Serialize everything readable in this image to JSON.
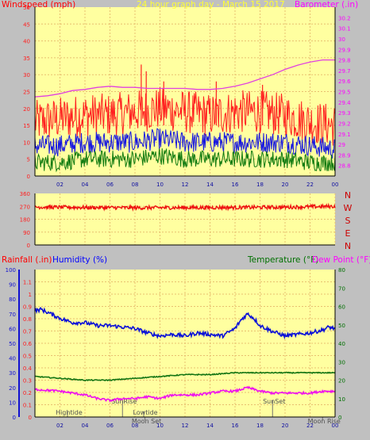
{
  "top_chart": {
    "title": "24 hour graph day - March 15 2017",
    "left_label": "Windspeed (mph)",
    "right_label": "Barometer (.in)"
  },
  "mid_chart": {
    "directions": [
      "N",
      "W",
      "S",
      "E",
      "N"
    ]
  },
  "bottom_chart": {
    "rain_label": "Rainfall (.in)",
    "hum_label": "Humidity (%)",
    "temp_label": "Temperature (°F)",
    "dew_label": "Dew Point (°F)",
    "events": [
      {
        "label": "Hightide",
        "t": 2.6,
        "row": 1
      },
      {
        "label": "SunRise",
        "t": 7.0,
        "row": 0
      },
      {
        "label": "Lowtide",
        "t": 8.7,
        "row": 1
      },
      {
        "label": "Moon Set",
        "t": 8.8,
        "row": 2
      },
      {
        "label": "SunSet",
        "t": 19.0,
        "row": 0
      },
      {
        "label": "Moon Rise",
        "t": 23.0,
        "row": 2
      }
    ]
  },
  "colors": {
    "background": "#c0c0c0",
    "plot": "#ffffa0",
    "grid": "#e8c070",
    "wind_gust": "#ff2020",
    "wind_avg": "#1515e0",
    "wind_min": "#107a10",
    "barometer": "#e040e0",
    "direction": "#ee1010",
    "humidity": "#0a10d8",
    "temperature": "#147514",
    "dewpoint": "#ee10ee",
    "rain_axis": "#1010d0",
    "dir_label": "#cc0000"
  },
  "chart_data": [
    {
      "type": "line",
      "title": "24 hour graph day - March 15 2017",
      "x_ticks": [
        "02",
        "04",
        "06",
        "08",
        "10",
        "12",
        "14",
        "16",
        "18",
        "20",
        "22",
        "00"
      ],
      "ylabel": "Windspeed (mph)",
      "ylim": [
        0,
        50
      ],
      "y_ticks": [
        0,
        5,
        10,
        15,
        20,
        25,
        30,
        35,
        40,
        45,
        50
      ],
      "y2label": "Barometer (.in)",
      "y2lim": [
        28.7,
        30.3
      ],
      "y2_ticks": [
        "28.8",
        "28.9",
        "29",
        "29.1",
        "29.2",
        "29.3",
        "29.4",
        "29.5",
        "29.6",
        "29.7",
        "29.8",
        "29.9",
        "30",
        "30.1",
        "30.2"
      ],
      "series": [
        {
          "key": "gust",
          "x": [
            0,
            2,
            4,
            6,
            8,
            10,
            12,
            14,
            16,
            18,
            20,
            22,
            24
          ],
          "values": [
            16,
            17,
            18,
            18,
            19,
            20,
            19,
            18,
            19,
            19,
            18,
            16,
            15
          ]
        },
        {
          "key": "avg",
          "x": [
            0,
            2,
            4,
            6,
            8,
            10,
            12,
            14,
            16,
            18,
            20,
            22,
            24
          ],
          "values": [
            9,
            9,
            10,
            10,
            10,
            11,
            10,
            10,
            10,
            10,
            10,
            9,
            8
          ]
        },
        {
          "key": "min",
          "x": [
            0,
            2,
            4,
            6,
            8,
            10,
            12,
            14,
            16,
            18,
            20,
            22,
            24
          ],
          "values": [
            4,
            4,
            5,
            5,
            5,
            6,
            5,
            5,
            5,
            5,
            5,
            4,
            4
          ]
        },
        {
          "key": "baro",
          "x": [
            0,
            1,
            2,
            3,
            4,
            5,
            6,
            7,
            8,
            9,
            10,
            11,
            12,
            13,
            14,
            15,
            16,
            17,
            18,
            19,
            20,
            21,
            22,
            23,
            24
          ],
          "values": [
            29.45,
            29.46,
            29.48,
            29.51,
            29.52,
            29.54,
            29.55,
            29.54,
            29.54,
            29.53,
            29.53,
            29.53,
            29.53,
            29.52,
            29.52,
            29.53,
            29.55,
            29.58,
            29.62,
            29.66,
            29.71,
            29.75,
            29.78,
            29.8,
            29.8
          ]
        }
      ]
    },
    {
      "type": "line",
      "x_ticks": [
        "02",
        "04",
        "06",
        "08",
        "10",
        "12",
        "14",
        "16",
        "18",
        "20",
        "22",
        "00"
      ],
      "ylim": [
        0,
        360
      ],
      "y_ticks": [
        0,
        90,
        180,
        270,
        360
      ],
      "series": [
        {
          "key": "direction",
          "x": [
            0,
            4,
            8,
            12,
            16,
            20,
            24
          ],
          "values": [
            265,
            262,
            260,
            261,
            262,
            264,
            270
          ]
        }
      ]
    },
    {
      "type": "line",
      "x_ticks": [
        "02",
        "04",
        "06",
        "08",
        "10",
        "12",
        "14",
        "16",
        "18",
        "20",
        "22",
        "00"
      ],
      "y_rain_ticks": [
        0,
        0.1,
        0.2,
        0.3,
        0.4,
        0.5,
        0.6,
        0.7,
        0.8,
        0.9,
        1,
        1.1
      ],
      "y_rain_lim": [
        0,
        1.2
      ],
      "y_hum_ticks": [
        0,
        10,
        20,
        30,
        40,
        50,
        60,
        70,
        80,
        90,
        100
      ],
      "y_hum_lim": [
        0,
        100
      ],
      "y_temp_ticks": [
        0,
        10,
        20,
        30,
        40,
        50,
        60,
        70,
        80
      ],
      "y_temp_lim": [
        0,
        80
      ],
      "series": [
        {
          "key": "humidity",
          "x": [
            0,
            0.5,
            1,
            2,
            3,
            4,
            5,
            6,
            7,
            8,
            9,
            10,
            11,
            12,
            13,
            14,
            15,
            16,
            16.5,
            17,
            17.5,
            18,
            19,
            20,
            21,
            22,
            23,
            23.5,
            24
          ],
          "values": [
            72,
            73,
            71,
            67,
            64,
            64,
            62,
            62,
            61,
            60,
            57,
            55,
            56,
            55,
            57,
            56,
            55,
            60,
            66,
            70,
            67,
            62,
            58,
            55,
            56,
            57,
            59,
            61,
            60
          ]
        },
        {
          "key": "temperature",
          "x": [
            0,
            2,
            4,
            6,
            8,
            10,
            12,
            14,
            16,
            18,
            20,
            22,
            24
          ],
          "values": [
            22,
            21,
            20,
            20,
            21,
            22,
            23,
            23,
            24,
            24,
            24,
            24,
            24
          ]
        },
        {
          "key": "dewpoint",
          "x": [
            0,
            1,
            2,
            3,
            4,
            5,
            6,
            7,
            8,
            9,
            10,
            11,
            12,
            13,
            14,
            15,
            16,
            17,
            18,
            19,
            20,
            21,
            22,
            23,
            24
          ],
          "values": [
            15,
            14.5,
            14,
            13,
            12,
            10,
            9,
            10,
            10,
            11,
            10,
            12,
            12,
            12,
            13,
            14,
            14,
            16,
            14,
            13,
            13,
            13,
            13,
            14,
            14
          ]
        },
        {
          "key": "rain",
          "x": [
            0,
            24
          ],
          "values": [
            0,
            0
          ]
        }
      ]
    }
  ]
}
